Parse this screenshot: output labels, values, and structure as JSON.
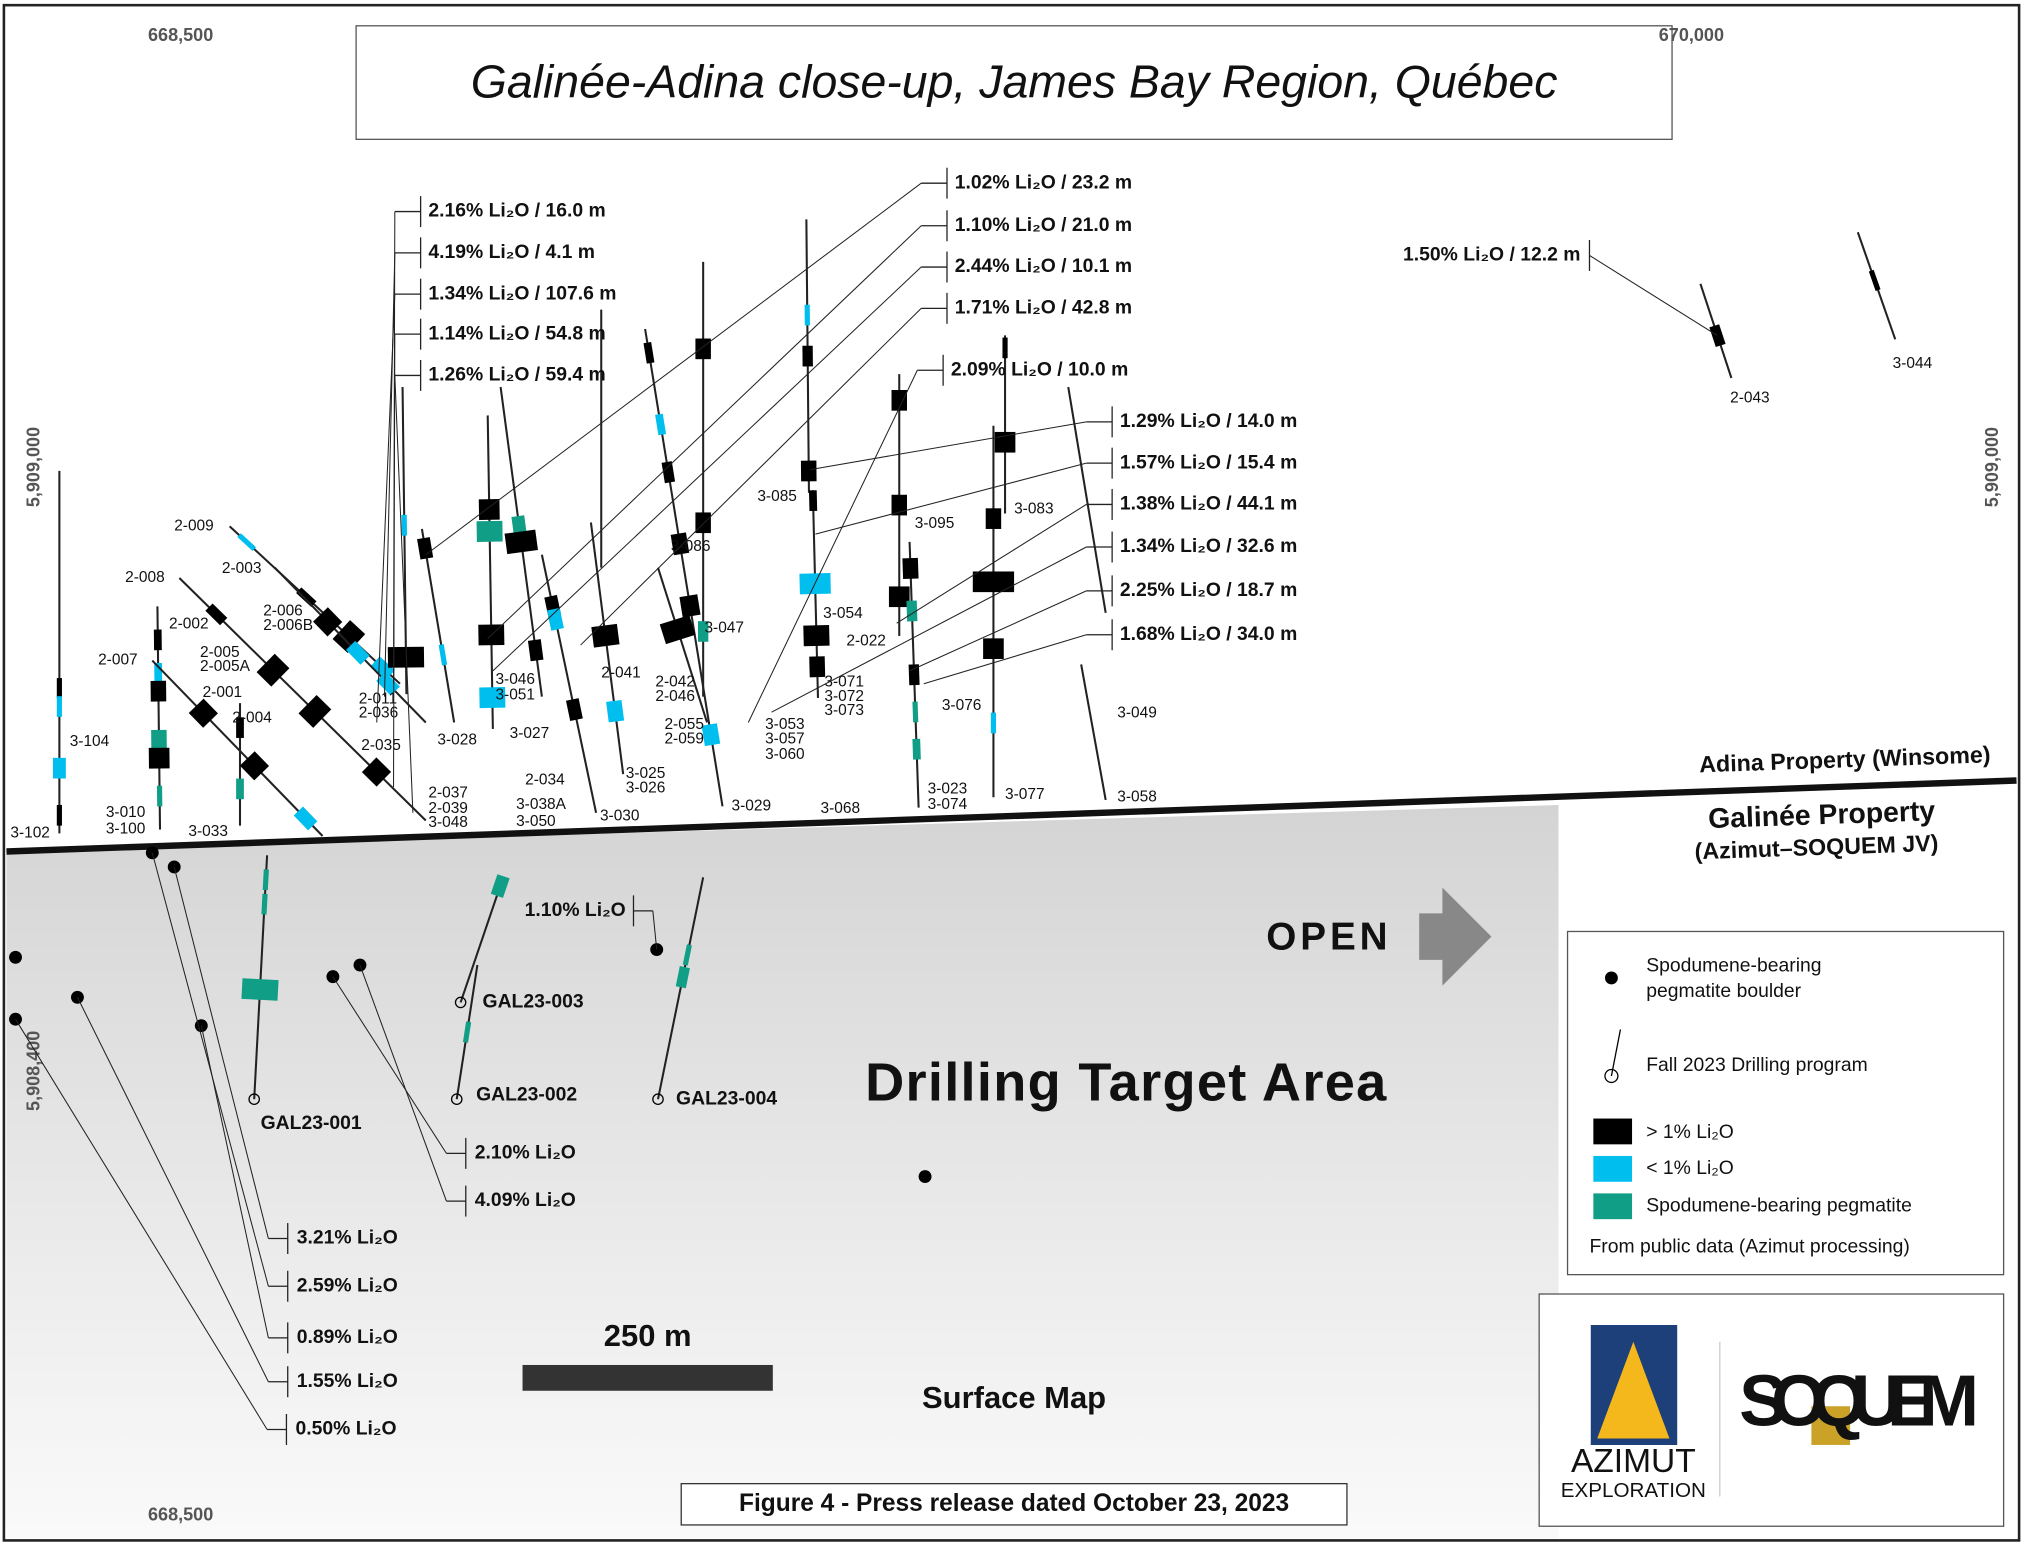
{
  "title": "Galinée-Adina close-up, James Bay Region, Québec",
  "coordinates": {
    "top": [
      "668,500",
      "670,000"
    ],
    "left": [
      "5,909,000",
      "5,908,400"
    ],
    "right": [
      "5,909,000"
    ],
    "bottom": [
      "668,500"
    ]
  },
  "drill_holes": [
    "3-102",
    "3-104",
    "3-010",
    "3-100",
    "2-007",
    "2-008",
    "2-009",
    "2-003",
    "2-002",
    "2-005",
    "2-005A",
    "2-001",
    "2-004",
    "3-033",
    "2-006",
    "2-006B",
    "2-011",
    "2-036",
    "2-035",
    "2-037",
    "2-039",
    "3-048",
    "3-028",
    "3-046",
    "3-051",
    "3-027",
    "3-038A",
    "3-050",
    "2-034",
    "3-030",
    "2-041",
    "2-042",
    "2-046",
    "3-025",
    "3-026",
    "2-055",
    "2-059",
    "3-086",
    "3-047",
    "3-029",
    "3-053",
    "3-057",
    "3-060",
    "3-085",
    "3-054",
    "2-022",
    "3-071",
    "3-072",
    "3-073",
    "3-068",
    "3-095",
    "3-076",
    "3-023",
    "3-074",
    "3-083",
    "3-077",
    "3-049",
    "3-058",
    "2-043",
    "3-044"
  ],
  "intercepts_adina": [
    "2.16% Li₂O / 16.0 m",
    "4.19% Li₂O / 4.1 m",
    "1.34% Li₂O / 107.6 m",
    "1.14% Li₂O / 54.8 m",
    "1.26% Li₂O / 59.4 m",
    "1.02% Li₂O / 23.2 m",
    "1.10% Li₂O / 21.0 m",
    "2.44%  Li₂O / 10.1 m",
    "1.71% Li₂O / 42.8 m",
    "2.09% Li₂O / 10.0 m",
    "1.29% Li₂O / 14.0 m",
    "1.57% Li₂O / 15.4 m",
    "1.38% Li₂O / 44.1 m",
    "1.34% Li₂O / 32.6 m",
    "2.25% Li₂O / 18.7 m",
    "1.68% Li₂O / 34.0 m",
    "1.50% Li₂O / 12.2 m"
  ],
  "galinee_holes": [
    "GAL23-001",
    "GAL23-002",
    "GAL23-003",
    "GAL23-004"
  ],
  "boulder_grades": [
    "1.10% Li₂O",
    "2.10% Li₂O",
    "4.09% Li₂O",
    "3.21% Li₂O",
    "2.59% Li₂O",
    "0.89% Li₂O",
    "1.55% Li₂O",
    "0.50% Li₂O"
  ],
  "properties": {
    "adina": "Adina Property (Winsome)",
    "galinee": "Galinée Property",
    "galinee_owner": "(Azimut–SOQUEM JV)"
  },
  "open_label": "OPEN",
  "target_label": "Drilling Target Area",
  "legend": {
    "boulder": [
      "Spodumene-bearing",
      "pegmatite boulder"
    ],
    "drilling": "Fall 2023 Drilling program",
    "high": "> 1% Li₂O",
    "low": "< 1% Li₂O",
    "pegmatite": "Spodumene-bearing pegmatite",
    "source": "From public data (Azimut processing)"
  },
  "scale_bar": "250 m",
  "map_label": "Surface Map",
  "caption": "Figure 4 - Press release dated October 23, 2023",
  "logos": {
    "azimut": "AZIMUT",
    "azimut_sub": "EXPLORATION",
    "soquem": "SOQUEM"
  }
}
